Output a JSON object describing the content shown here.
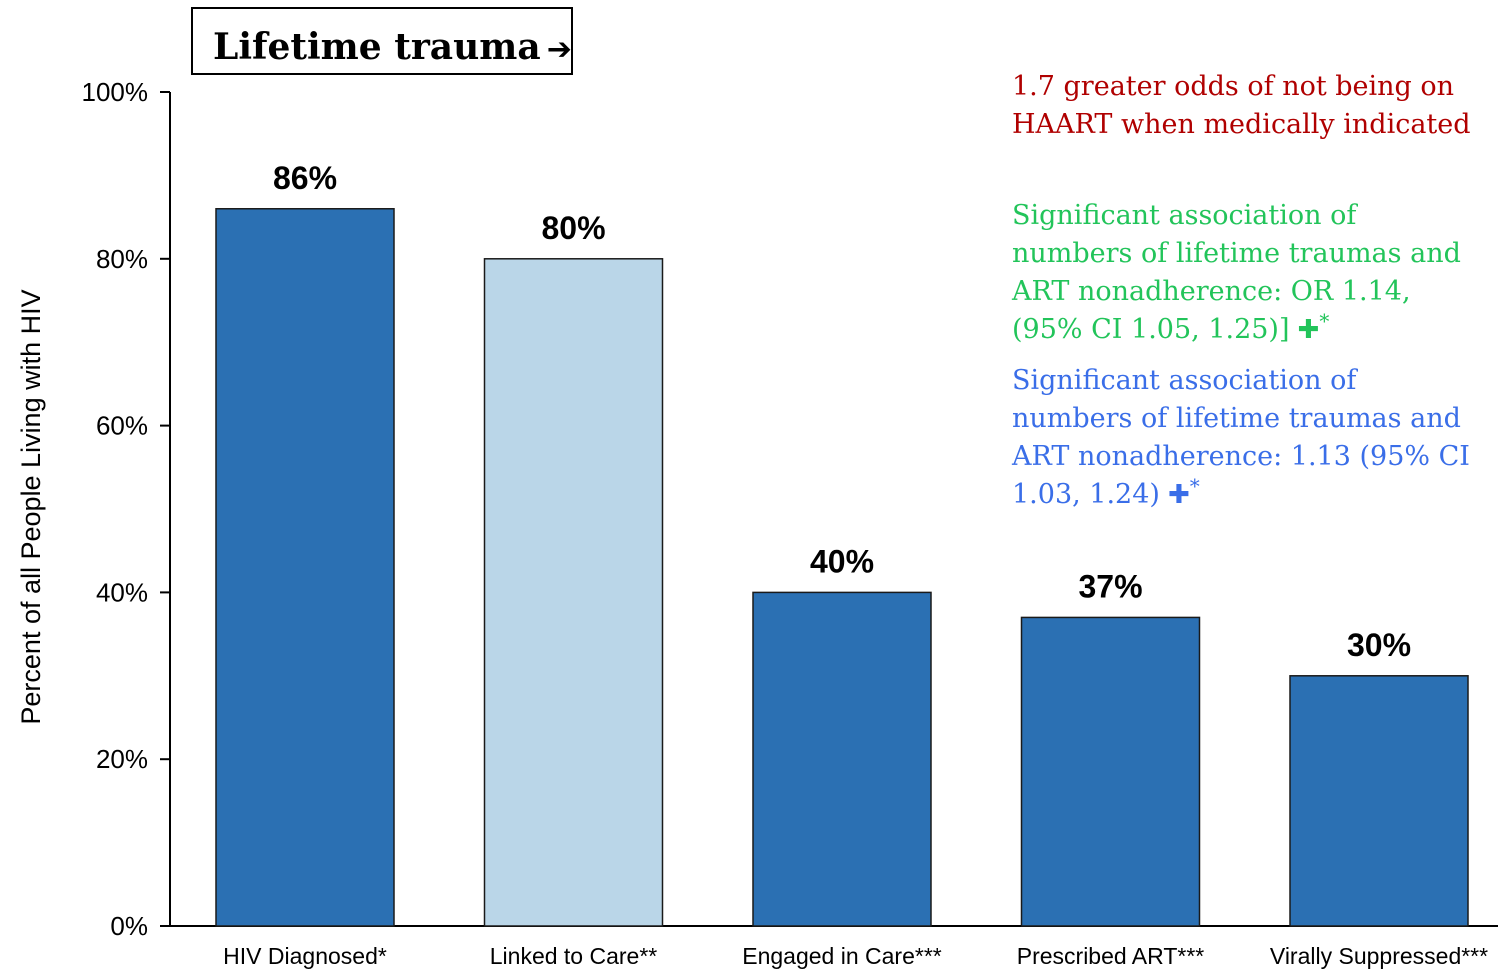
{
  "chart_data": {
    "type": "bar",
    "categories": [
      "HIV Diagnosed*",
      "Linked to Care**",
      "Engaged in Care***",
      "Prescribed ART***",
      "Virally Suppressed***"
    ],
    "values": [
      86,
      80,
      40,
      37,
      30
    ],
    "value_labels": [
      "86%",
      "80%",
      "40%",
      "37%",
      "30%"
    ],
    "bar_colors": [
      "#2b70b3",
      "#bad6e8",
      "#2b70b3",
      "#2b70b3",
      "#2b70b3"
    ],
    "ylabel": "Percent of all People Living with HIV",
    "ylim": [
      0,
      100
    ],
    "yticks": [
      0,
      20,
      40,
      60,
      80,
      100
    ],
    "ytick_labels": [
      "0%",
      "20%",
      "40%",
      "60%",
      "80%",
      "100%"
    ],
    "grid": false
  },
  "callout": {
    "text": "Lifetime trauma",
    "arrow": "➔"
  },
  "notes": [
    {
      "text": "1.7 greater odds of not being on HAART when medically indicated",
      "color": "#b00000",
      "plus": "",
      "star": ""
    },
    {
      "text": "Significant association of numbers of lifetime traumas and ART nonadherence: OR 1.14, (95% CI 1.05, 1.25)]",
      "color": "#22c45a",
      "plus": "✚",
      "star": "*"
    },
    {
      "text": "Significant association of numbers of lifetime traumas and ART nonadherence: 1.13 (95% CI 1.03, 1.24)",
      "color": "#3a6ee8",
      "plus": "✚",
      "star": "*"
    }
  ]
}
